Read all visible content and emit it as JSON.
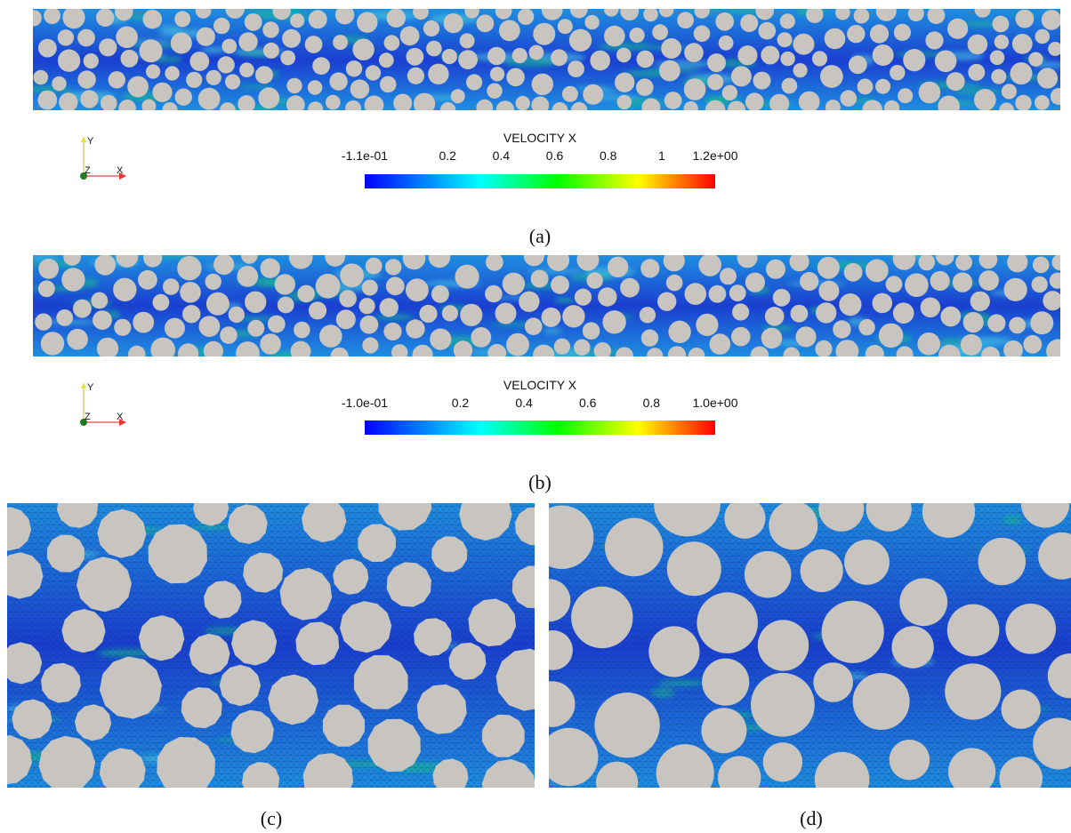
{
  "panels": [
    {
      "colorbar": {
        "title": "VELOCITY X",
        "tick_labels": [
          "-1.1e-01",
          "0.2",
          "0.4",
          "0.6",
          "0.8",
          "1",
          "1.2e+00"
        ],
        "min": -0.11,
        "max": 1.2,
        "tick_values": [
          -0.11,
          0.2,
          0.4,
          0.6,
          0.8,
          1.0,
          1.2
        ]
      },
      "caption": "(a)"
    },
    {
      "colorbar": {
        "title": "VELOCITY X",
        "tick_labels": [
          "-1.0e-01",
          "0.2",
          "0.4",
          "0.6",
          "0.8",
          "1.0e+00"
        ],
        "min": -0.1,
        "max": 1.0,
        "tick_values": [
          -0.1,
          0.2,
          0.4,
          0.6,
          0.8,
          1.0
        ]
      },
      "caption": "(b)"
    }
  ],
  "axes_triad": {
    "y": "Y",
    "z": "Z",
    "x": "X"
  },
  "bottom_captions": [
    "(c)",
    "(d)"
  ],
  "colors": {
    "particle": "#c8c5c0",
    "flow_low": "#1a3fd0",
    "flow_mid": "#1f8ee0",
    "flow_high": "#19c38a",
    "jet_blue": "#0000ff",
    "jet_cyan": "#00ffff",
    "jet_green": "#00ff00",
    "jet_yellow": "#ffff00",
    "jet_red": "#ff0000"
  }
}
